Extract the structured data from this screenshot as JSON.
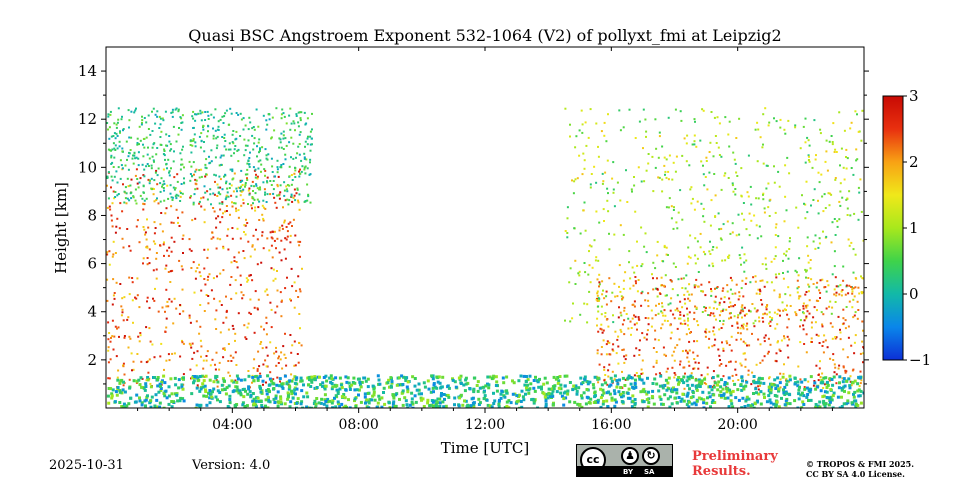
{
  "chart_data": {
    "type": "heatmap",
    "title": "Quasi BSC Angstroem Exponent 532-1064 (V2) of pollyxt_fmi at Leipzig2",
    "xlabel": "Time [UTC]",
    "ylabel": "Height [km]",
    "xlim_hours": [
      0,
      24
    ],
    "ylim_km": [
      0,
      15
    ],
    "x_ticks": [
      {
        "hour": 4,
        "label": "04:00"
      },
      {
        "hour": 8,
        "label": "08:00"
      },
      {
        "hour": 12,
        "label": "12:00"
      },
      {
        "hour": 16,
        "label": "16:00"
      },
      {
        "hour": 20,
        "label": "20:00"
      }
    ],
    "y_ticks": [
      {
        "km": 2,
        "label": "2"
      },
      {
        "km": 4,
        "label": "4"
      },
      {
        "km": 6,
        "label": "6"
      },
      {
        "km": 8,
        "label": "8"
      },
      {
        "km": 10,
        "label": "10"
      },
      {
        "km": 12,
        "label": "12"
      },
      {
        "km": 14,
        "label": "14"
      }
    ],
    "colorbar": {
      "min": -1,
      "max": 3,
      "ticks": [
        {
          "value": 3,
          "label": "3"
        },
        {
          "value": 2,
          "label": "2"
        },
        {
          "value": 1,
          "label": "1"
        },
        {
          "value": 0,
          "label": "0"
        },
        {
          "value": -1,
          "label": "−1"
        }
      ],
      "colors": [
        "#0c2fd6",
        "#0a86ea",
        "#12b9a8",
        "#3fd34a",
        "#a8e81c",
        "#f0e81a",
        "#f8a214",
        "#e8300f",
        "#c80a04"
      ]
    },
    "data_gaps_hours": [
      [
        2.45,
        2.6
      ],
      [
        17.15,
        17.25
      ],
      [
        21.65,
        21.75
      ]
    ],
    "regions": [
      {
        "name": "noisy aerosol layer (morning)",
        "t0": 0.0,
        "t1": 6.2,
        "h0": 0.9,
        "h1": 10.0,
        "value_range": [
          1.5,
          3.0
        ]
      },
      {
        "name": "cirrus (morning)",
        "t0": 0.0,
        "t1": 6.5,
        "h0": 8.5,
        "h1": 12.5,
        "value_range": [
          -0.2,
          0.8
        ]
      },
      {
        "name": "cloud layer (afternoon/evening)",
        "t0": 14.5,
        "t1": 24.0,
        "h0": 3.5,
        "h1": 12.5,
        "value_range": [
          0.2,
          1.8
        ]
      },
      {
        "name": "noisy aerosol layer (evening)",
        "t0": 15.5,
        "t1": 24.0,
        "h0": 0.8,
        "h1": 5.5,
        "value_range": [
          1.5,
          3.0
        ]
      },
      {
        "name": "near-surface layer",
        "t0": 0.0,
        "t1": 24.0,
        "h0": 0.05,
        "h1": 1.4,
        "value_range": [
          -0.5,
          1.0
        ]
      }
    ]
  },
  "footer": {
    "date": "2025-10-31",
    "version": "Version: 4.0",
    "preliminary_line1": "Preliminary",
    "preliminary_line2": "Results.",
    "license_line1": "© TROPOS & FMI 2025.",
    "license_line2": "CC BY SA 4.0 License.",
    "cc_mark": "cc",
    "cc_by": "BY",
    "cc_sa": "SA"
  }
}
